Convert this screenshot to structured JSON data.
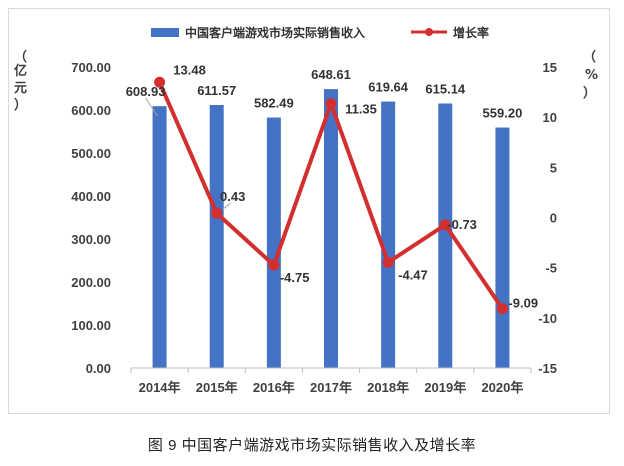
{
  "caption": "图 9  中国客户端游戏市场实际销售收入及增长率",
  "chart_data": {
    "type": "bar",
    "categories": [
      "2014年",
      "2015年",
      "2016年",
      "2017年",
      "2018年",
      "2019年",
      "2020年"
    ],
    "series": [
      {
        "name": "中国客户端游戏市场实际销售收入",
        "type": "bar",
        "axis": "left",
        "values": [
          608.93,
          611.57,
          582.49,
          648.61,
          619.64,
          615.14,
          559.2
        ],
        "labels": [
          "608.93",
          "611.57",
          "582.49",
          "648.61",
          "619.64",
          "615.14",
          "559.20"
        ],
        "color": "#4472C4"
      },
      {
        "name": "增长率",
        "type": "line",
        "axis": "right",
        "values": [
          13.48,
          0.43,
          -4.75,
          11.35,
          -4.47,
          -0.73,
          -9.09
        ],
        "labels": [
          "13.48",
          "0.43",
          "-4.75",
          "11.35",
          "-4.47",
          "-0.73",
          "-9.09"
        ],
        "color": "#D32F2F"
      }
    ],
    "ylabel_left": "亿元",
    "ylabel_right": "%",
    "ylim_left": [
      0,
      700
    ],
    "ylim_right": [
      -15,
      15
    ],
    "yticks_left": [
      "0.00",
      "100.00",
      "200.00",
      "300.00",
      "400.00",
      "500.00",
      "600.00",
      "700.00"
    ],
    "yticks_right": [
      "-15",
      "-10",
      "-5",
      "0",
      "5",
      "10",
      "15"
    ],
    "legend_position": "top",
    "grid": false
  }
}
